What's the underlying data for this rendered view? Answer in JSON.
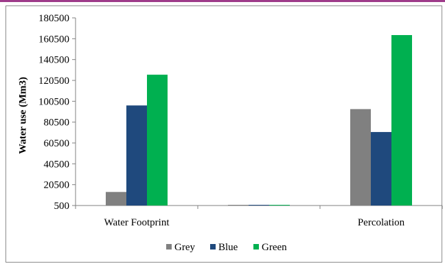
{
  "chart_data": {
    "type": "bar",
    "categories": [
      "Water Footprint",
      "",
      "Percolation"
    ],
    "series": [
      {
        "name": "Grey",
        "color": "#808080",
        "values": [
          13500,
          500,
          93000
        ]
      },
      {
        "name": "Blue",
        "color": "#1f497d",
        "values": [
          96500,
          500,
          71000
        ]
      },
      {
        "name": "Green",
        "color": "#00b050",
        "values": [
          126000,
          500,
          164000
        ]
      }
    ],
    "title": "",
    "xlabel": "",
    "ylabel": "Water use (Mm3)",
    "ylim": [
      500,
      180500
    ],
    "yticks": [
      500,
      20500,
      40500,
      60500,
      80500,
      100500,
      120500,
      140500,
      160500,
      180500
    ],
    "ytick_labels": [
      "500",
      "20500",
      "40500",
      "60500",
      "80500",
      "100500",
      "120500",
      "140500",
      "160500",
      "180500"
    ],
    "grid": false,
    "legend": {
      "position": "bottom",
      "entries": [
        "Grey",
        "Blue",
        "Green"
      ]
    }
  },
  "colors": {
    "top_rule": "#9e3b8a",
    "axis": "#808080"
  }
}
